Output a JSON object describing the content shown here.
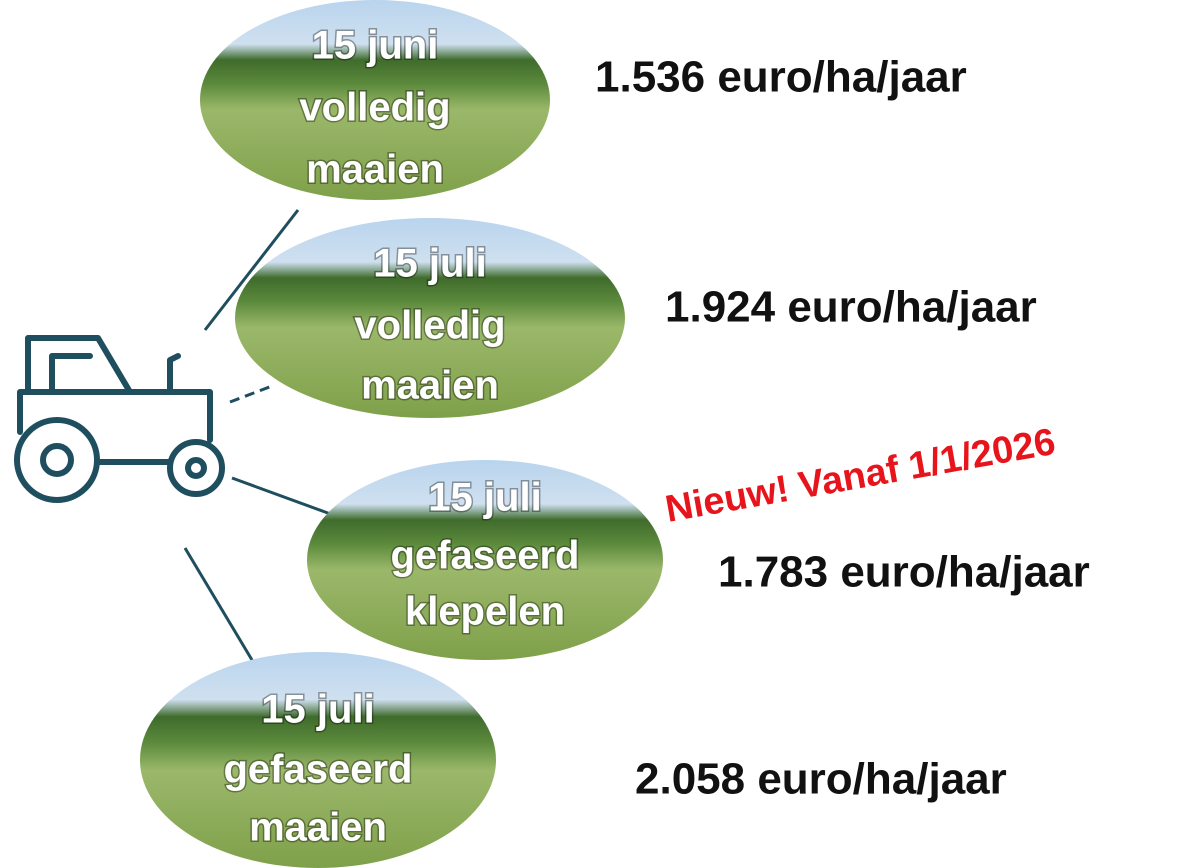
{
  "nodes": [
    {
      "label": [
        "15 juni",
        "volledig",
        "maaien"
      ],
      "price": "1.536 euro/ha/jaar"
    },
    {
      "label": [
        "15 juli",
        "volledig",
        "maaien"
      ],
      "price": "1.924 euro/ha/jaar"
    },
    {
      "label": [
        "15 juli",
        "gefaseerd",
        "klepelen"
      ],
      "price": "1.783 euro/ha/jaar"
    },
    {
      "label": [
        "15 juli",
        "gefaseerd",
        "maaien"
      ],
      "price": "2.058 euro/ha/jaar"
    }
  ],
  "annotation": "Nieuw! Vanaf 1/1/2026"
}
